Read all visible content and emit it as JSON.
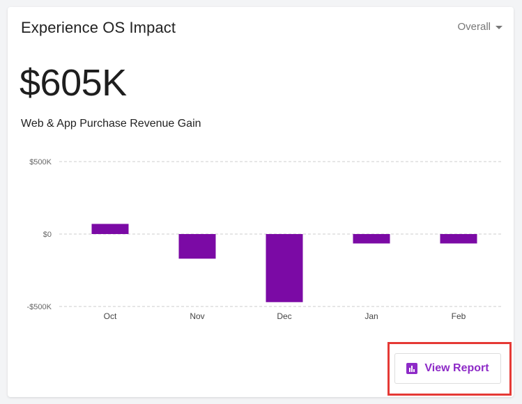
{
  "card": {
    "title": "Experience OS Impact",
    "dropdown_value": "Overall",
    "big_value": "$605K",
    "subtitle": "Web & App Purchase Revenue Gain",
    "view_report_label": "View Report"
  },
  "colors": {
    "bar": "#7b0aa5",
    "accent": "#8e2bc7",
    "highlight": "#e53935"
  },
  "icons": {
    "dropdown": "caret-down-icon",
    "report": "bar-chart-icon"
  },
  "chart_data": {
    "type": "bar",
    "categories": [
      "Oct",
      "Nov",
      "Dec",
      "Jan",
      "Feb"
    ],
    "values": [
      70,
      -170,
      -470,
      -65,
      -65
    ],
    "ylim": [
      -500,
      500
    ],
    "yticks": [
      500,
      0,
      -500
    ],
    "ytick_labels": [
      "$500K",
      "$0",
      "-$500K"
    ],
    "grid": true,
    "legend": "none"
  }
}
